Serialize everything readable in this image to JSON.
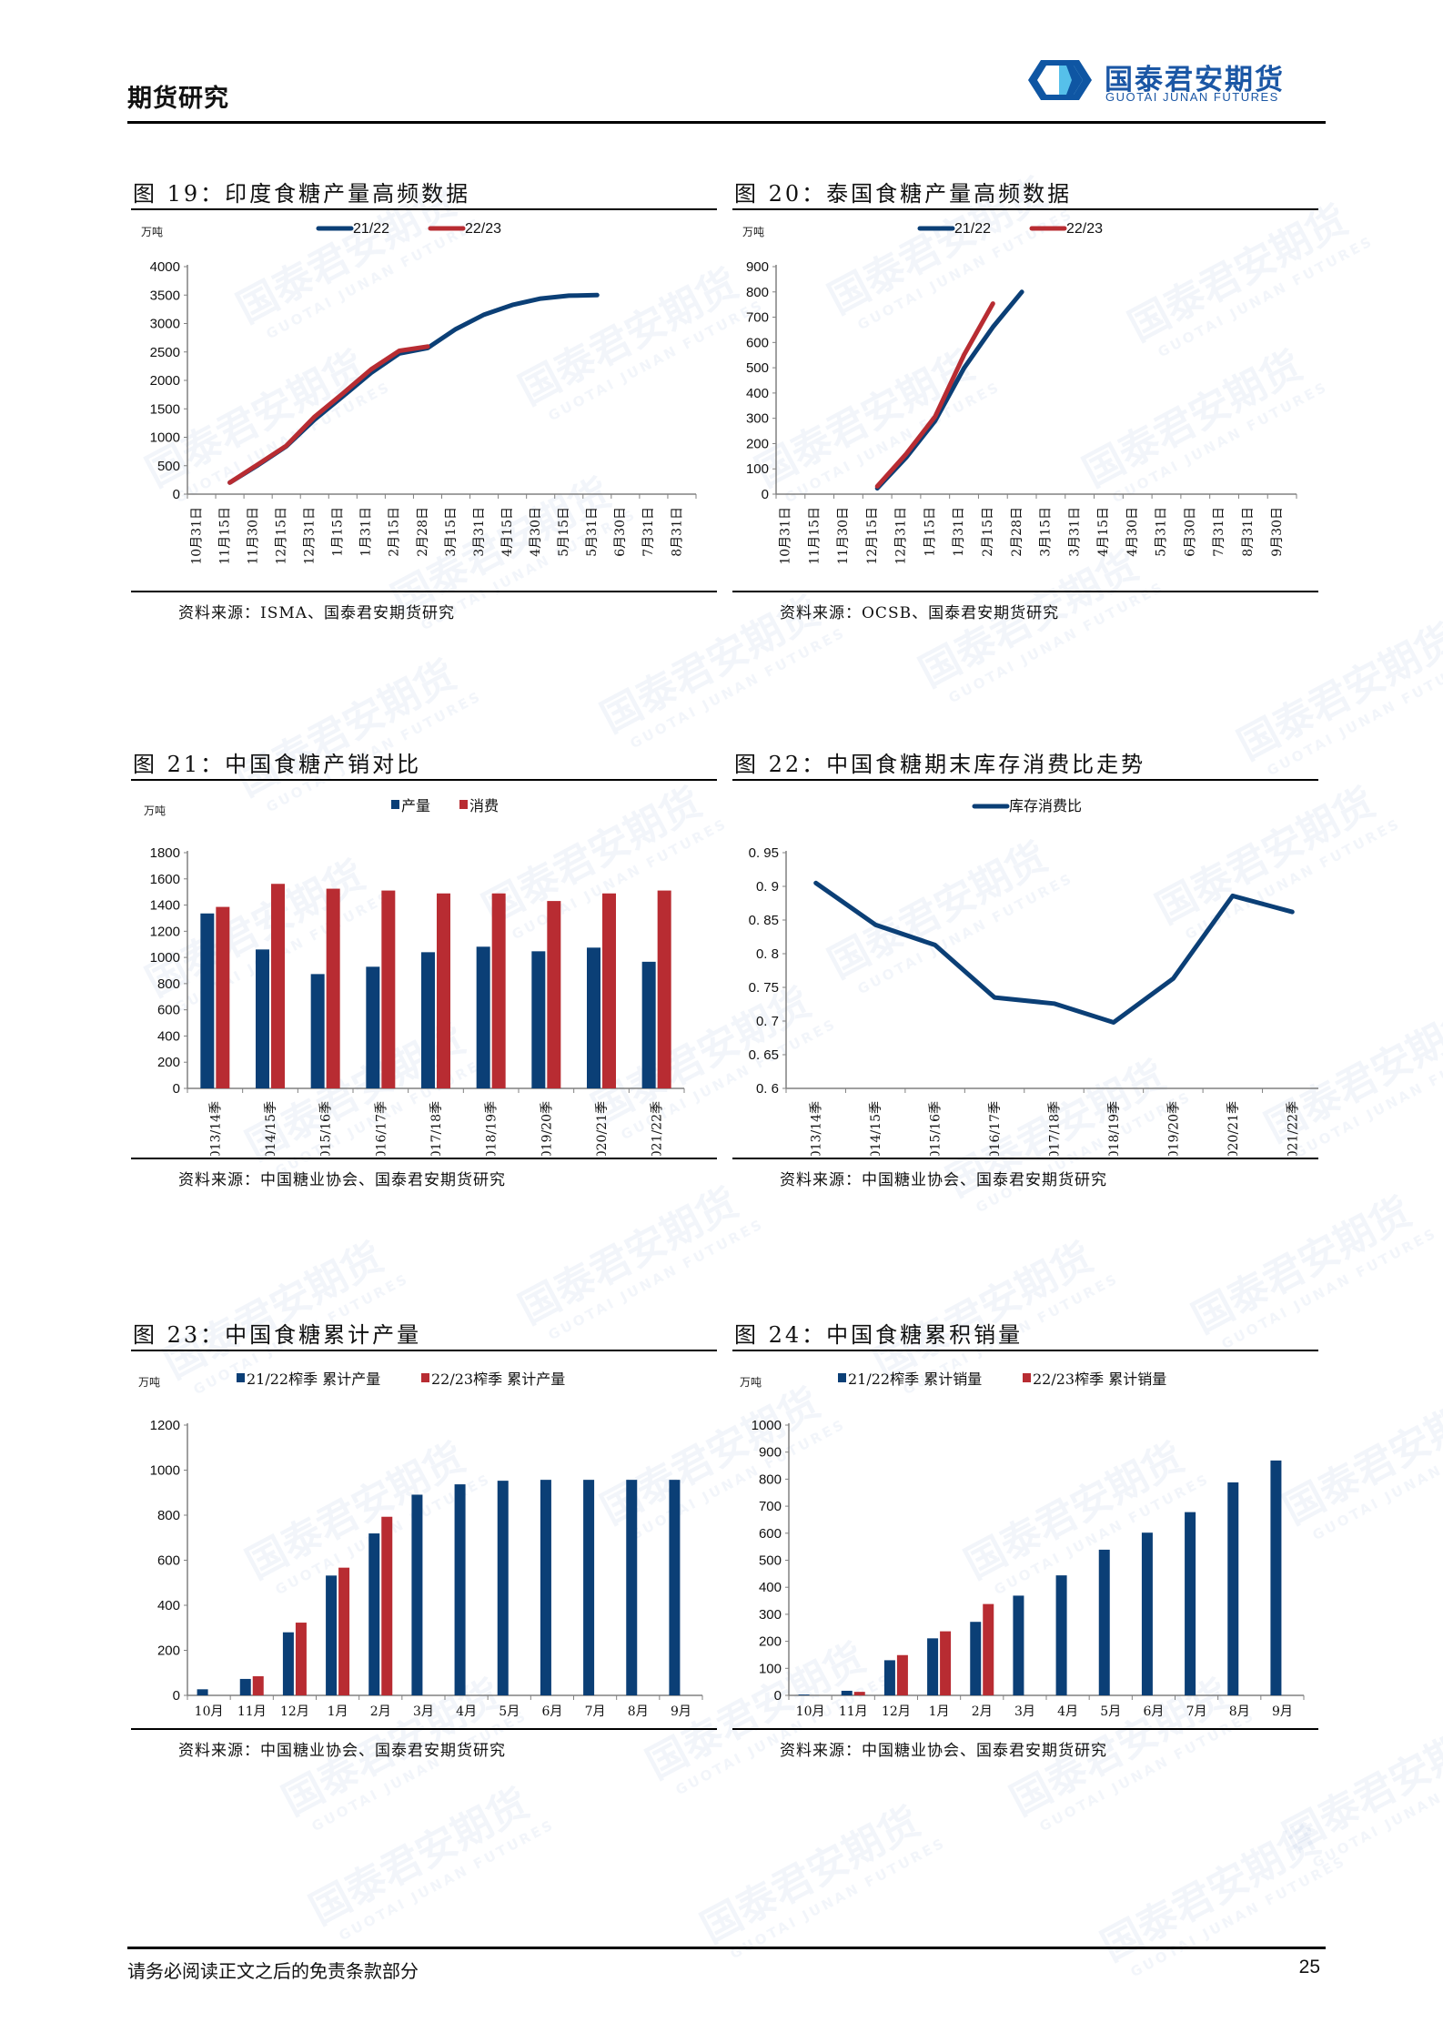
{
  "header": {
    "section_title": "期货研究",
    "logo_cn": "国泰君安期货",
    "logo_en": "GUOTAI JUNAN FUTURES"
  },
  "footer": {
    "disclaimer": "请务必阅读正文之后的免责条款部分",
    "page_number": "25"
  },
  "watermark": {
    "cn": "国泰君安期货",
    "en": "GUOTAI JUNAN FUTURES"
  },
  "colors": {
    "series_2122": "#0b3f76",
    "series_2223": "#b82c32",
    "axis": "#808080",
    "brand": "#1b57a5"
  },
  "panels": [
    {
      "title": "图 19：印度食糖产量高频数据",
      "source": "资料来源：ISMA、国泰君安期货研究"
    },
    {
      "title": "图 20：泰国食糖产量高频数据",
      "source": "资料来源：OCSB、国泰君安期货研究"
    },
    {
      "title": "图 21：中国食糖产销对比",
      "source": "资料来源：中国糖业协会、国泰君安期货研究"
    },
    {
      "title": "图 22：中国食糖期末库存消费比走势",
      "source": "资料来源：中国糖业协会、国泰君安期货研究"
    },
    {
      "title": "图 23：中国食糖累计产量",
      "source": "资料来源：中国糖业协会、国泰君安期货研究"
    },
    {
      "title": "图 24：中国食糖累积销量",
      "source": "资料来源：中国糖业协会、国泰君安期货研究"
    }
  ],
  "chart_data": [
    {
      "id": "fig19",
      "type": "line",
      "title": "图 19：印度食糖产量高频数据",
      "unit": "万吨",
      "ylabel": "万吨",
      "ylim": [
        0,
        4000
      ],
      "yticks": [
        0,
        500,
        1000,
        1500,
        2000,
        2500,
        3000,
        3500,
        4000
      ],
      "grid": false,
      "legend": "top-center",
      "categories": [
        "10月31日",
        "11月15日",
        "11月30日",
        "12月15日",
        "12月31日",
        "1月15日",
        "1月31日",
        "2月15日",
        "2月28日",
        "3月15日",
        "3月31日",
        "4月15日",
        "4月30日",
        "5月15日",
        "5月31日",
        "6月30日",
        "7月31日",
        "8月31日"
      ],
      "series": [
        {
          "name": "21/22",
          "values": [
            null,
            204,
            510,
            842,
            1311,
            1719,
            2133,
            2474,
            2570,
            2902,
            3157,
            3326,
            3438,
            3489,
            3499,
            null,
            null,
            null
          ]
        },
        {
          "name": "22/23",
          "values": [
            null,
            204,
            525,
            852,
            1362,
            1770,
            2194,
            2520,
            2595,
            null,
            null,
            null,
            null,
            null,
            null,
            null,
            null,
            null
          ]
        }
      ]
    },
    {
      "id": "fig20",
      "type": "line",
      "title": "图 20：泰国食糖产量高频数据",
      "unit": "万吨",
      "ylabel": "万吨",
      "ylim": [
        0,
        900
      ],
      "yticks": [
        0,
        100,
        200,
        300,
        400,
        500,
        600,
        700,
        800,
        900
      ],
      "grid": false,
      "legend": "top-center",
      "categories": [
        "10月31日",
        "11月15日",
        "11月30日",
        "12月15日",
        "12月31日",
        "1月15日",
        "1月31日",
        "2月15日",
        "2月28日",
        "3月15日",
        "3月31日",
        "4月15日",
        "4月30日",
        "5月31日",
        "6月30日",
        "7月31日",
        "8月31日",
        "9月30日"
      ],
      "series": [
        {
          "name": "21/22",
          "values": [
            null,
            null,
            null,
            23,
            145,
            290,
            499,
            661,
            800,
            null,
            null,
            null,
            null,
            null,
            null,
            null,
            null,
            null
          ]
        },
        {
          "name": "22/23",
          "values": [
            null,
            null,
            null,
            31,
            159,
            307,
            551,
            754,
            null,
            null,
            null,
            null,
            null,
            null,
            null,
            null,
            null,
            null
          ]
        }
      ]
    },
    {
      "id": "fig21",
      "type": "bar",
      "title": "图 21：中国食糖产销对比",
      "unit": "万吨",
      "ylabel": "万吨",
      "ylim": [
        0,
        1800
      ],
      "yticks": [
        0,
        200,
        400,
        600,
        800,
        1000,
        1200,
        1400,
        1600,
        1800
      ],
      "grid": false,
      "legend": "top-center",
      "categories": [
        "2013/14季",
        "2014/15季",
        "2015/16季",
        "2016/17季",
        "2017/18季",
        "2018/19季",
        "2019/20季",
        "2020/21季",
        "2021/22季"
      ],
      "series": [
        {
          "name": "产量",
          "values": [
            1336,
            1061,
            873,
            929,
            1040,
            1082,
            1047,
            1075,
            967
          ]
        },
        {
          "name": "消费",
          "values": [
            1386,
            1562,
            1525,
            1511,
            1489,
            1489,
            1431,
            1489,
            1511
          ]
        }
      ]
    },
    {
      "id": "fig22",
      "type": "line",
      "title": "图 22：中国食糖期末库存消费比走势",
      "ylabel": "",
      "ylim": [
        0.6,
        0.95
      ],
      "yticks": [
        0.6,
        0.65,
        0.7,
        0.75,
        0.8,
        0.85,
        0.9,
        0.95
      ],
      "grid": false,
      "legend": "top-center",
      "categories": [
        "2013/14季",
        "2014/15季",
        "2015/16季",
        "2016/17季",
        "2017/18季",
        "2018/19季",
        "2019/20季",
        "2020/21季",
        "2021/22季"
      ],
      "series": [
        {
          "name": "库存消费比",
          "values": [
            0.905,
            0.843,
            0.813,
            0.735,
            0.726,
            0.698,
            0.763,
            0.886,
            0.862
          ]
        }
      ]
    },
    {
      "id": "fig23",
      "type": "bar",
      "title": "图 23：中国食糖累计产量",
      "unit": "万吨",
      "ylabel": "万吨",
      "ylim": [
        0,
        1200
      ],
      "yticks": [
        0,
        200,
        400,
        600,
        800,
        1000,
        1200
      ],
      "grid": false,
      "legend": "top-center",
      "categories": [
        "10月",
        "11月",
        "12月",
        "1月",
        "2月",
        "3月",
        "4月",
        "5月",
        "6月",
        "7月",
        "8月",
        "9月"
      ],
      "series": [
        {
          "name": "21/22榨季 累计产量",
          "values": [
            27,
            73,
            280,
            532,
            719,
            891,
            937,
            953,
            957,
            957,
            957,
            957
          ]
        },
        {
          "name": "22/23榨季 累计产量",
          "values": [
            null,
            85,
            323,
            567,
            793,
            null,
            null,
            null,
            null,
            null,
            null,
            null
          ]
        }
      ]
    },
    {
      "id": "fig24",
      "type": "bar",
      "title": "图 24：中国食糖累积销量",
      "unit": "万吨",
      "ylabel": "万吨",
      "ylim": [
        0,
        1000
      ],
      "yticks": [
        0,
        100,
        200,
        300,
        400,
        500,
        600,
        700,
        800,
        900,
        1000
      ],
      "grid": false,
      "legend": "top-center",
      "categories": [
        "10月",
        "11月",
        "12月",
        "1月",
        "2月",
        "3月",
        "4月",
        "5月",
        "6月",
        "7月",
        "8月",
        "9月"
      ],
      "series": [
        {
          "name": "21/22榨季 累计销量",
          "values": [
            3,
            17,
            130,
            211,
            272,
            369,
            444,
            539,
            602,
            678,
            788,
            869
          ]
        },
        {
          "name": "22/23榨季 累计销量",
          "values": [
            null,
            13,
            149,
            237,
            338,
            null,
            null,
            null,
            null,
            null,
            null,
            null
          ]
        }
      ]
    }
  ]
}
